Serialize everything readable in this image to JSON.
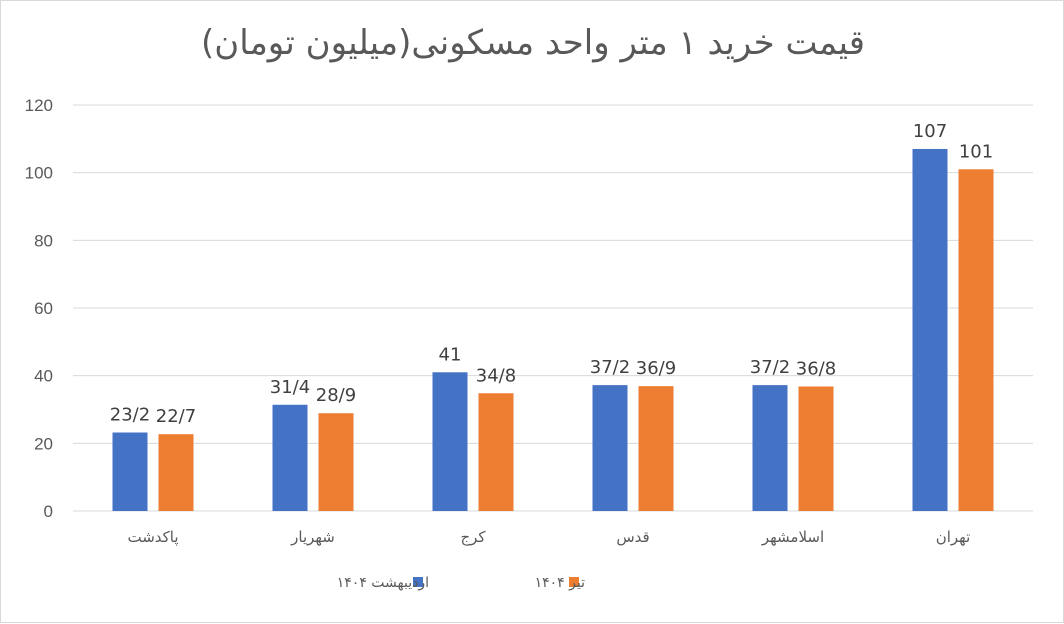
{
  "chart_data": {
    "type": "bar",
    "title": "قیمت خرید ۱ متر واحد مسکونی(میلیون تومان)",
    "categories": [
      "پاکدشت",
      "شهریار",
      "کرج",
      "قدس",
      "اسلامشهر",
      "تهران"
    ],
    "series": [
      {
        "name": "اردیبهشت ۱۴۰۴",
        "color": "#4472c4",
        "values": [
          23.2,
          31.4,
          41,
          37.2,
          37.2,
          107
        ],
        "labels": [
          "23/2",
          "31/4",
          "41",
          "37/2",
          "37/2",
          "107"
        ]
      },
      {
        "name": "تیر ۱۴۰۴",
        "color": "#ed7d31",
        "values": [
          22.7,
          28.9,
          34.8,
          36.9,
          36.8,
          101
        ],
        "labels": [
          "22/7",
          "28/9",
          "34/8",
          "36/9",
          "36/8",
          "101"
        ]
      }
    ],
    "ylim": [
      0,
      120
    ],
    "yticks": [
      "0",
      "20",
      "40",
      "60",
      "80",
      "100",
      "120"
    ],
    "grid": true,
    "legend": "bottom"
  }
}
